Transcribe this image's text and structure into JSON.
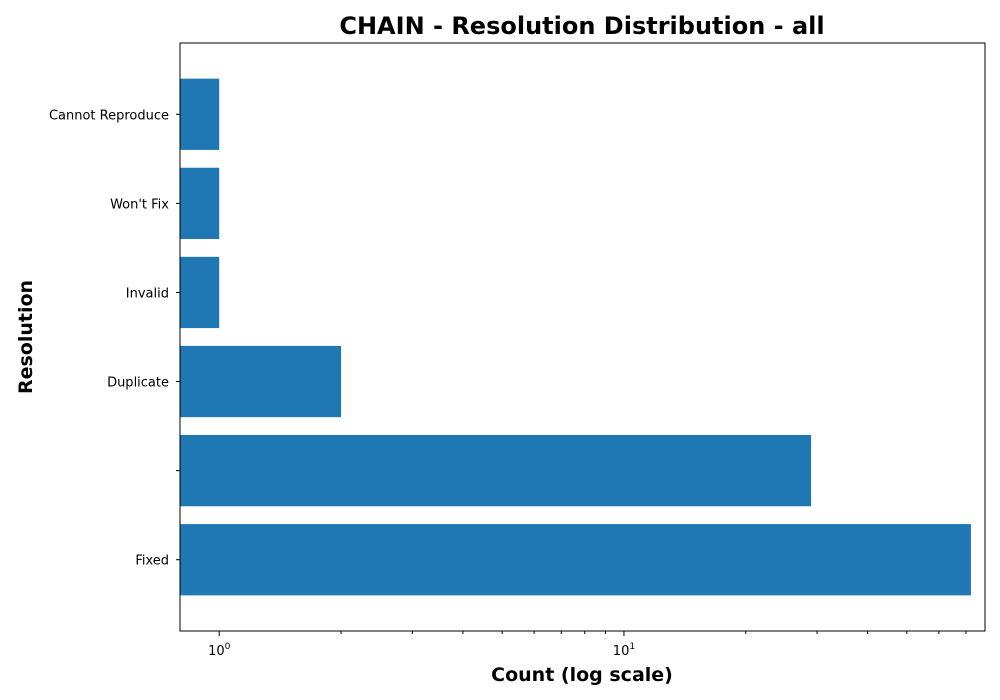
{
  "chart_data": {
    "type": "bar",
    "orientation": "horizontal",
    "title": "CHAIN - Resolution Distribution - all",
    "xlabel": "Count (log scale)",
    "ylabel": "Resolution",
    "x_scale": "log",
    "xlim": [
      0.8,
      78
    ],
    "categories": [
      "Fixed",
      "",
      "Duplicate",
      "Invalid",
      "Won't Fix",
      "Cannot Reproduce"
    ],
    "values": [
      72,
      29,
      2,
      1,
      1,
      1
    ],
    "bar_color": "#1f77b4",
    "x_major_ticks": [
      1,
      10
    ],
    "x_major_tick_labels": [
      {
        "base": "10",
        "exp": "0"
      },
      {
        "base": "10",
        "exp": "1"
      }
    ],
    "x_minor_ticks": [
      2,
      3,
      4,
      5,
      6,
      7,
      8,
      9,
      20,
      30,
      40,
      50,
      60,
      70
    ],
    "grid": false,
    "legend": "none"
  }
}
